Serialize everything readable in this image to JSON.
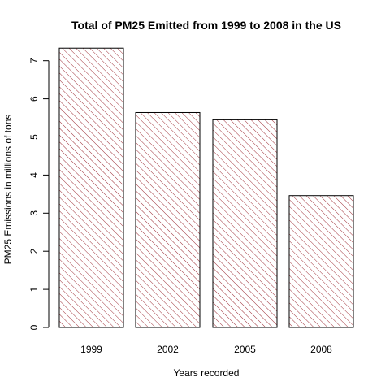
{
  "chart_data": {
    "type": "bar",
    "title": "Total of PM25 Emitted from 1999 to 2008 in the US",
    "xlabel": "Years recorded",
    "ylabel": "PM25 Emissions in millions of tons",
    "categories": [
      "1999",
      "2002",
      "2005",
      "2008"
    ],
    "values": [
      7.33,
      5.64,
      5.45,
      3.46
    ],
    "ylim": [
      0,
      7.5
    ],
    "yticks": [
      0,
      1,
      2,
      3,
      4,
      5,
      6,
      7
    ],
    "grid": false,
    "bar_fill": "diagonal hatch",
    "bar_color": "#a0323a",
    "bar_border_color": "#000000"
  }
}
